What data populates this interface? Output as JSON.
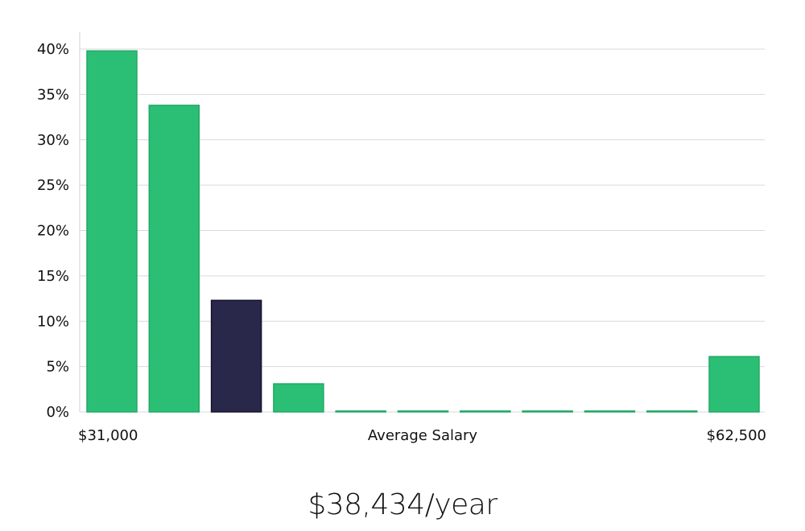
{
  "chart_data": {
    "type": "bar",
    "title": "",
    "xlabel": "Average Salary",
    "ylabel": "",
    "ylim": [
      0,
      40
    ],
    "y_ticks": [
      "0%",
      "5%",
      "10%",
      "15%",
      "20%",
      "25%",
      "30%",
      "35%",
      "40%"
    ],
    "y_tick_values": [
      0,
      5,
      10,
      15,
      20,
      25,
      30,
      35,
      40
    ],
    "x_min_label": "$31,000",
    "x_max_label": "$62,500",
    "values": [
      39.8,
      33.8,
      12.3,
      3.1,
      0.1,
      0.1,
      0.1,
      0.1,
      0.1,
      0.1,
      6.1
    ],
    "highlight_index": 2,
    "colors": {
      "bar": "#2bbf76",
      "bar_border": "#22a865",
      "highlight": "#29274a",
      "highlight_border": "#15132e"
    },
    "grid": true
  },
  "summary": {
    "average_salary": "$38,434/year"
  }
}
